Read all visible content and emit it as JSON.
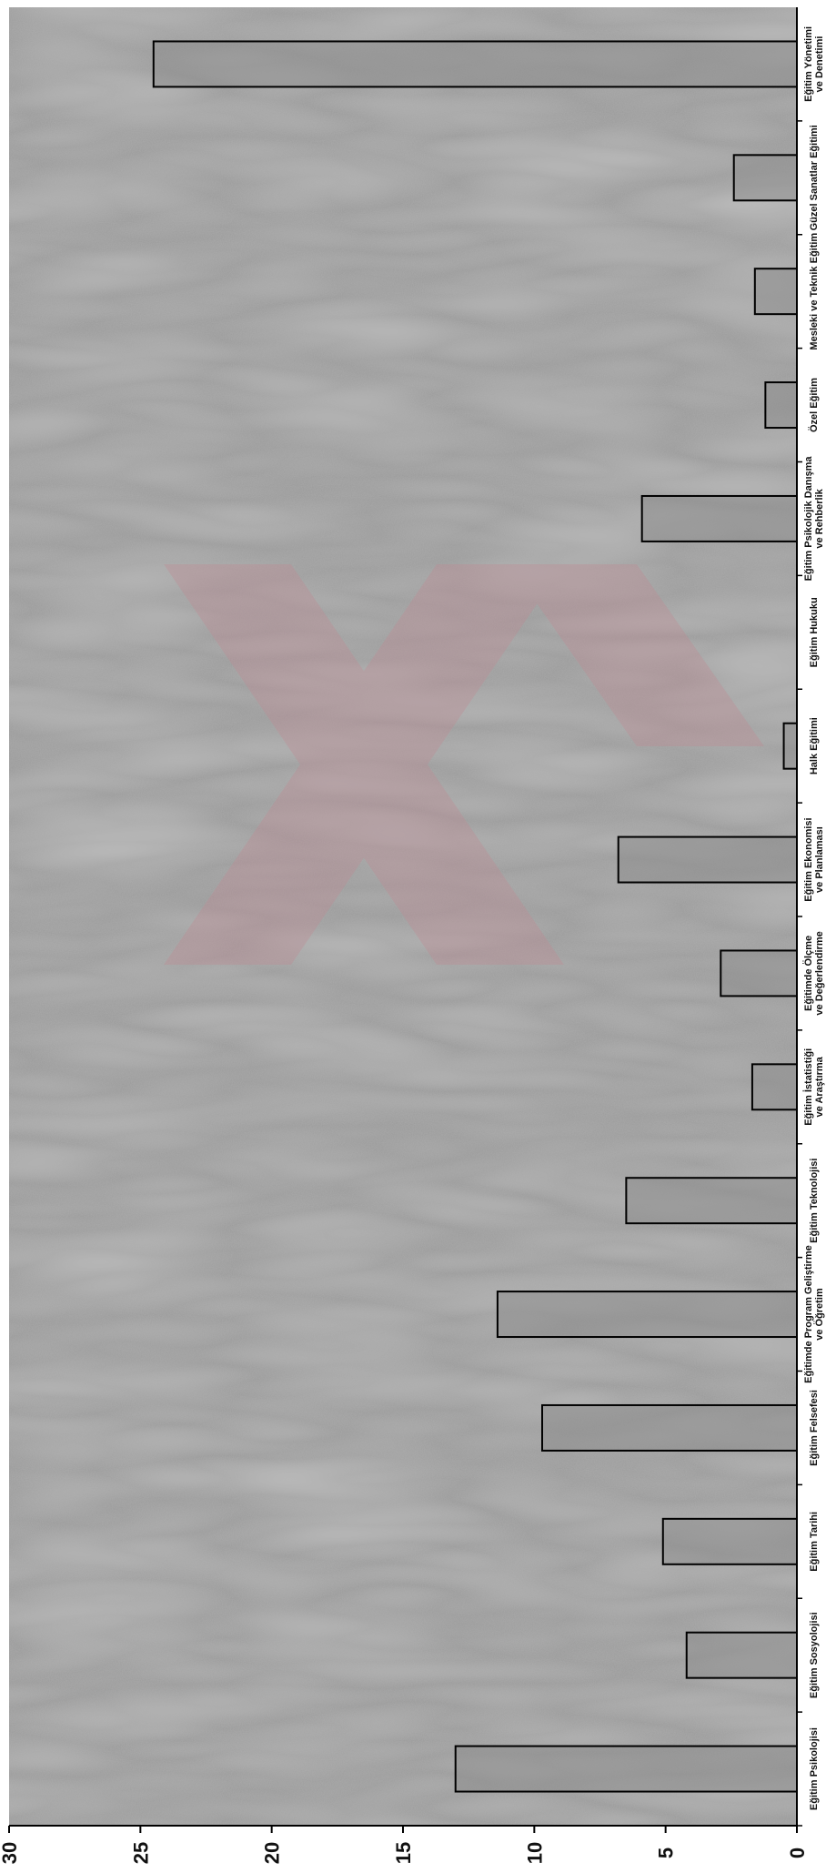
{
  "chart_data": {
    "type": "bar",
    "orientation": "horizontal",
    "title": "",
    "xlabel": "",
    "ylabel": "",
    "xlim": [
      0,
      30
    ],
    "grid": false,
    "legend": "none",
    "ticks": [
      "0",
      "5",
      "10",
      "15",
      "20",
      "25",
      "30"
    ],
    "categories": [
      "Eğitim Psikolojisi",
      "Eğitim Sosyolojisi",
      "Eğitim Tarihi",
      "Eğitim Felsefesi",
      "Eğitimde Program Geliştirme ve Öğretim",
      "Eğitim Teknolojisi",
      "Eğitim İstatistiği ve Araştırma",
      "Eğitimde Ölçme ve Değerlendirme",
      "Eğitim Ekonomisi ve Planlaması",
      "Halk Eğitimi",
      "Eğitim Hukuku",
      "Eğitim Psikolojik Danışma ve Rehberlik",
      "Özel Eğitim",
      "Mesleki ve Teknik Eğitim",
      "Güzel Sanatlar Eğitimi",
      "Eğitim Yönetimi ve Denetimi"
    ],
    "values": [
      13.0,
      4.2,
      5.1,
      9.7,
      11.4,
      6.5,
      1.7,
      2.9,
      6.8,
      0.5,
      0.0,
      5.9,
      1.2,
      1.6,
      2.4,
      24.5
    ],
    "colors": {
      "bar_fill": "#8e8e8e",
      "bar_stroke": "#000000",
      "plot_bg": "#9a9a9a",
      "axis": "#000000",
      "watermark": "#c08a93"
    }
  }
}
